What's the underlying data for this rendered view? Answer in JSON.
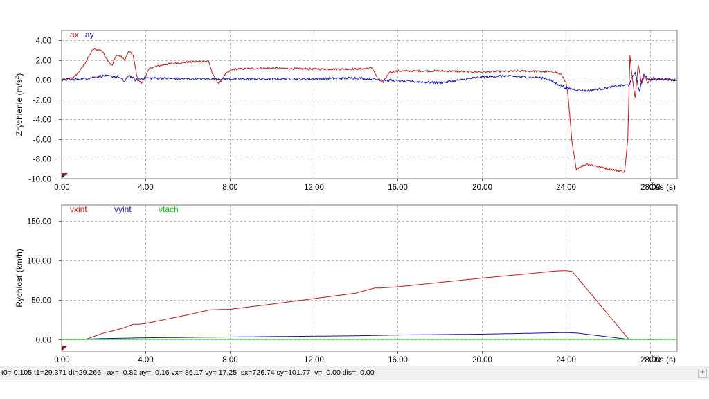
{
  "status": {
    "text": "t0= 0.105 t1=29.371 dt=29.266   ax=  0.82 ay=  0.16 vx= 86.17 vy= 17.25  sx=726.74 sy=101.77  v=  0.00 dis=  0.00"
  },
  "corner_button": {
    "icon": "plus-icon",
    "glyph": "+"
  },
  "colors": {
    "red": "#cc1111",
    "blue": "#1111aa",
    "green": "#00cc00",
    "grid": "#b4b4b4",
    "marker": "#8b1a1a"
  },
  "chart_data": [
    {
      "type": "line",
      "ylabel_main": "Zrýchlenie  (m/s",
      "ylabel_sup": "2",
      "ylabel_tail": ")",
      "xlabel": "Čas (s)",
      "xlim": [
        0,
        29.3
      ],
      "ylim": [
        -10,
        5
      ],
      "xticks": [
        0,
        4,
        8,
        12,
        16,
        20,
        24,
        28
      ],
      "xtick_labels": [
        "0.00",
        "4.00",
        "8.00",
        "12.00",
        "16.00",
        "20.00",
        "24.00",
        "28.00"
      ],
      "yticks": [
        4,
        2,
        0,
        -2,
        -4,
        -6,
        -8,
        -10
      ],
      "ytick_labels": [
        "4.00",
        "2.00",
        "0.00",
        "-2.00",
        "-4.00",
        "-6.00",
        "-8.00",
        "-10.00"
      ],
      "legend_position": "top-left",
      "series": [
        {
          "name": "ax",
          "color": "#cc1111",
          "noise": 0.1,
          "x": [
            0,
            0.6,
            0.9,
            1.2,
            1.5,
            1.9,
            2.2,
            2.4,
            2.6,
            2.8,
            3.0,
            3.2,
            3.4,
            3.6,
            3.8,
            4.2,
            5.0,
            6.0,
            7.0,
            7.2,
            7.5,
            7.8,
            8.2,
            10,
            12,
            14,
            14.8,
            15.0,
            15.3,
            15.6,
            16,
            18,
            20,
            22,
            23.5,
            23.8,
            24.0,
            24.1,
            24.3,
            24.5,
            25,
            26,
            26.8,
            26.95,
            27.05,
            27.15,
            27.3,
            27.45,
            27.6,
            27.75,
            27.9,
            28.1,
            28.3,
            28.6,
            29.3
          ],
          "y": [
            -0.1,
            0.3,
            1.0,
            2.0,
            3.1,
            3.0,
            2.0,
            1.4,
            2.5,
            2.4,
            2.0,
            2.9,
            2.5,
            0.2,
            -0.4,
            1.2,
            1.6,
            1.8,
            1.9,
            0.5,
            -0.4,
            0.6,
            1.1,
            1.2,
            1.1,
            1.1,
            1.2,
            0.3,
            -0.3,
            0.8,
            0.9,
            0.9,
            0.8,
            0.9,
            0.8,
            0.5,
            -0.2,
            -1.5,
            -6.5,
            -9.0,
            -8.5,
            -9.0,
            -9.3,
            -6.0,
            2.5,
            0.5,
            -1.8,
            1.8,
            -0.5,
            0.5,
            -0.3,
            0.3,
            0.0,
            0.1,
            0.0
          ]
        },
        {
          "name": "ay",
          "color": "#1111aa",
          "noise": 0.12,
          "x": [
            0,
            1.0,
            2.0,
            2.7,
            3.0,
            3.2,
            3.5,
            4.0,
            6.0,
            8,
            10,
            12,
            14,
            16,
            18,
            20,
            21,
            22,
            23,
            23.5,
            24.0,
            24.5,
            25,
            26,
            26.5,
            27.0,
            27.3,
            27.5,
            27.7,
            28.0,
            28.5,
            29.3
          ],
          "y": [
            0.0,
            0.1,
            0.4,
            0.3,
            -0.2,
            0.5,
            0.0,
            0.2,
            0.1,
            0.1,
            0.1,
            0.1,
            0.2,
            -0.1,
            -0.3,
            0.3,
            0.4,
            0.3,
            0.2,
            -0.3,
            -0.8,
            -1.0,
            -1.1,
            -0.8,
            -0.6,
            -0.5,
            0.8,
            -1.2,
            0.6,
            0.0,
            0.1,
            0.0
          ]
        }
      ]
    },
    {
      "type": "line",
      "ylabel_main": "Rýchlosť (km/h)",
      "xlabel": "Čas (s)",
      "xlim": [
        0,
        29.3
      ],
      "ylim": [
        -15,
        170
      ],
      "xticks": [
        0,
        4,
        8,
        12,
        16,
        20,
        24,
        28
      ],
      "xtick_labels": [
        "0.00",
        "4.00",
        "8.00",
        "12.00",
        "16.00",
        "20.00",
        "24.00",
        "28.00"
      ],
      "yticks": [
        150,
        100,
        50,
        0
      ],
      "ytick_labels": [
        "150.00",
        "100.00",
        "50.00",
        "0.00"
      ],
      "legend_position": "top-left",
      "series": [
        {
          "name": "vxint",
          "color": "#cc1111",
          "noise": 0,
          "x": [
            0,
            1.1,
            1.2,
            2.0,
            2.5,
            3.0,
            3.4,
            3.7,
            4.0,
            5.0,
            6.0,
            7.0,
            7.2,
            8.0,
            10,
            12,
            14,
            14.9,
            15.2,
            16,
            18,
            20,
            22,
            23.5,
            24.0,
            24.3,
            27.0,
            28.5
          ],
          "y": [
            0,
            0,
            0.5,
            8.0,
            11.0,
            15.0,
            19.0,
            19.0,
            20.0,
            25.5,
            31.0,
            37.0,
            37.5,
            38.0,
            44.5,
            51.5,
            58.5,
            65.0,
            65.0,
            66.5,
            72.0,
            77.5,
            82.5,
            86.5,
            87.0,
            86.0,
            0,
            0
          ]
        },
        {
          "name": "vyint",
          "color": "#1111aa",
          "noise": 0,
          "x": [
            0,
            1.0,
            2.0,
            3.0,
            4.0,
            6.0,
            8.0,
            10,
            12,
            14,
            16,
            18,
            20,
            22,
            23.5,
            24.0,
            24.5,
            27.0,
            28.5
          ],
          "y": [
            0,
            0.2,
            1.0,
            1.5,
            2.0,
            2.5,
            3.0,
            3.5,
            4.0,
            4.5,
            5.5,
            6.0,
            6.5,
            7.5,
            8.3,
            8.5,
            8.0,
            0,
            0
          ]
        },
        {
          "name": "vtach",
          "color": "#00cc00",
          "noise": 0,
          "x": [
            0,
            29.3
          ],
          "y": [
            0,
            0
          ]
        }
      ]
    }
  ]
}
